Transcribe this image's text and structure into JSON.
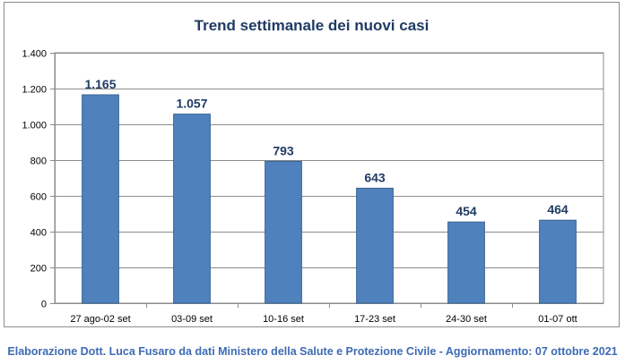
{
  "chart_data": {
    "type": "bar",
    "title": "Trend settimanale dei nuovi casi",
    "categories": [
      "27 ago-02 set",
      "03-09 set",
      "10-16 set",
      "17-23 set",
      "24-30 set",
      "01-07 ott"
    ],
    "values": [
      1165,
      1057,
      793,
      643,
      454,
      464
    ],
    "value_labels": [
      "1.165",
      "1.057",
      "793",
      "643",
      "454",
      "464"
    ],
    "y_ticks": [
      0,
      200,
      400,
      600,
      800,
      1000,
      1200,
      1400
    ],
    "y_tick_labels": [
      "0",
      "200",
      "400",
      "600",
      "800",
      "1.000",
      "1.200",
      "1.400"
    ],
    "ylim": [
      0,
      1400
    ],
    "xlabel": "",
    "ylabel": "",
    "grid": true,
    "legend": "none",
    "bar_color": "#4f81bd",
    "value_label_color": "#1f3b64"
  },
  "footer": {
    "credit": "Elaborazione Dott. Luca Fusaro da dati Ministero della Salute e Protezione Civile - Aggiornamento: 07 ottobre 2021"
  }
}
